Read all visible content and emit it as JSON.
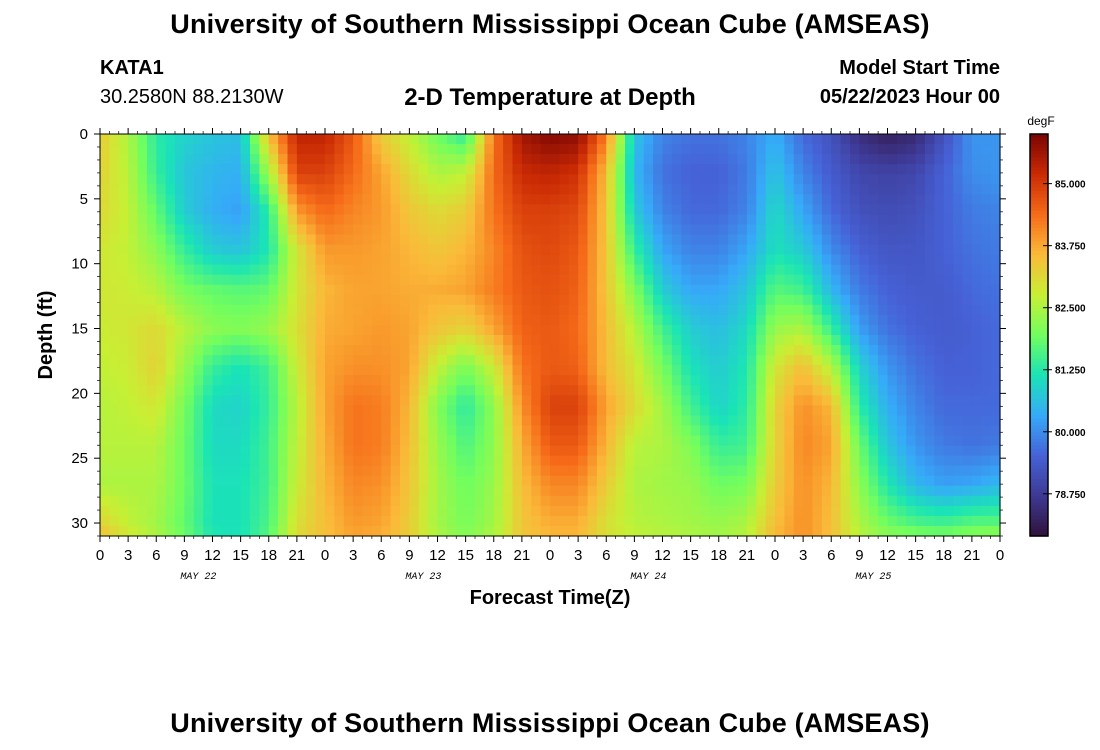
{
  "page": {
    "title": "University of Southern Mississippi Ocean Cube (AMSEAS)",
    "footer_title": "University of Southern Mississippi Ocean Cube (AMSEAS)",
    "station": {
      "name": "KATA1",
      "coords": "30.2580N  88.2130W"
    },
    "plot_title": "2-D Temperature at Depth",
    "model_start": {
      "label": "Model Start Time",
      "value": "05/22/2023 Hour 00"
    }
  },
  "chart_data": {
    "type": "heatmap",
    "title": "2-D Temperature at Depth",
    "xlabel": "Forecast Time(Z)",
    "ylabel": "Depth (ft)",
    "x_tick_labels": [
      "0",
      "3",
      "6",
      "9",
      "12",
      "15",
      "18",
      "21",
      "0",
      "3",
      "6",
      "9",
      "12",
      "15",
      "18",
      "21",
      "0",
      "3",
      "6",
      "9",
      "12",
      "15",
      "18",
      "21",
      "0",
      "3",
      "6",
      "9",
      "12",
      "15",
      "18",
      "21",
      "0"
    ],
    "x_range_hours": [
      0,
      96
    ],
    "day_labels": [
      "MAY 22",
      "MAY 23",
      "MAY 24",
      "MAY 25"
    ],
    "y_ticks": [
      0,
      5,
      10,
      15,
      20,
      25,
      30
    ],
    "y_range_ft": [
      0,
      31
    ],
    "colorbar": {
      "unit": "degF",
      "ticks": [
        "85.000",
        "83.750",
        "82.500",
        "81.250",
        "80.000",
        "78.750"
      ],
      "tick_values": [
        85.0,
        83.75,
        82.5,
        81.25,
        80.0,
        78.75
      ],
      "range": [
        77.9,
        86.0
      ],
      "colors": [
        "#30123b",
        "#3e3994",
        "#4662d7",
        "#36aaf9",
        "#1ae4b6",
        "#72fe5e",
        "#c8ef34",
        "#faba39",
        "#f66b19",
        "#ca2a04",
        "#7a0403"
      ]
    },
    "depths_ft": [
      0,
      3,
      6,
      9,
      12,
      15,
      18,
      21,
      24,
      27,
      30,
      31
    ],
    "hours": [
      0,
      3,
      6,
      9,
      12,
      15,
      18,
      21,
      24,
      27,
      30,
      33,
      36,
      39,
      42,
      45,
      48,
      51,
      54,
      57,
      60,
      63,
      66,
      69,
      72,
      75,
      78,
      81,
      84,
      87,
      90,
      93,
      96
    ],
    "temperature_degF": [
      [
        83.3,
        82.5,
        81.3,
        80.9,
        80.7,
        80.6,
        83.5,
        85.3,
        85.3,
        84.6,
        83.3,
        82.7,
        81.9,
        81.3,
        84.3,
        85.6,
        85.9,
        85.8,
        84.2,
        80.7,
        79.9,
        79.7,
        79.7,
        79.9,
        80.4,
        79.6,
        79.2,
        78.5,
        78.2,
        78.4,
        79.2,
        80.1,
        80.1
      ],
      [
        83.2,
        82.6,
        81.4,
        80.7,
        80.5,
        80.4,
        82.4,
        84.9,
        84.9,
        84.4,
        83.8,
        83.1,
        82.5,
        82.7,
        84.4,
        85.2,
        85.3,
        85.1,
        83.5,
        80.5,
        79.7,
        79.5,
        79.5,
        79.8,
        80.7,
        79.9,
        79.4,
        79.0,
        78.9,
        79.0,
        79.5,
        80.0,
        80.1
      ],
      [
        83.1,
        82.7,
        81.8,
        80.8,
        80.4,
        80.2,
        81.3,
        83.9,
        84.4,
        84.1,
        83.9,
        83.4,
        83.1,
        83.3,
        84.3,
        84.9,
        84.9,
        84.8,
        83.4,
        80.8,
        79.9,
        79.6,
        79.6,
        79.9,
        81.0,
        80.3,
        79.6,
        79.2,
        79.1,
        79.2,
        79.5,
        79.8,
        79.9
      ],
      [
        82.9,
        82.7,
        82.2,
        81.4,
        80.8,
        80.7,
        81.2,
        82.9,
        83.9,
        83.9,
        83.8,
        83.6,
        83.4,
        83.6,
        84.1,
        84.7,
        84.8,
        84.6,
        83.4,
        81.4,
        80.3,
        79.9,
        79.9,
        80.3,
        81.1,
        80.8,
        80.0,
        79.5,
        79.3,
        79.3,
        79.5,
        79.7,
        79.8
      ],
      [
        82.9,
        82.8,
        82.6,
        82.0,
        81.8,
        81.7,
        81.8,
        82.9,
        83.6,
        83.8,
        83.8,
        83.7,
        83.7,
        83.8,
        84.2,
        84.6,
        84.7,
        84.5,
        83.4,
        82.1,
        80.8,
        80.3,
        80.3,
        80.7,
        81.7,
        81.5,
        80.5,
        79.8,
        79.5,
        79.4,
        79.4,
        79.6,
        79.7
      ],
      [
        82.8,
        82.9,
        83.1,
        82.6,
        82.2,
        82.1,
        82.3,
        83.0,
        83.7,
        83.8,
        83.9,
        83.8,
        83.4,
        83.2,
        83.8,
        84.5,
        84.6,
        84.4,
        83.5,
        82.6,
        81.5,
        80.8,
        80.6,
        81.0,
        82.3,
        82.5,
        81.4,
        80.2,
        79.7,
        79.5,
        79.4,
        79.5,
        79.6
      ],
      [
        82.7,
        82.8,
        83.2,
        82.3,
        81.4,
        81.1,
        81.5,
        82.8,
        83.8,
        84.0,
        84.0,
        83.8,
        82.7,
        82.0,
        82.8,
        84.3,
        84.6,
        84.5,
        83.5,
        82.9,
        82.0,
        81.1,
        80.8,
        81.2,
        82.9,
        83.5,
        82.6,
        80.9,
        80.1,
        79.7,
        79.5,
        79.5,
        79.6
      ],
      [
        82.6,
        82.7,
        82.9,
        82.0,
        81.0,
        80.9,
        81.4,
        82.6,
        83.8,
        84.3,
        84.2,
        83.6,
        82.1,
        81.3,
        82.2,
        84.0,
        84.9,
        84.9,
        83.8,
        83.1,
        82.4,
        81.5,
        80.9,
        81.3,
        83.2,
        84.0,
        83.6,
        81.3,
        80.4,
        79.9,
        79.6,
        79.6,
        79.6
      ],
      [
        82.6,
        82.6,
        82.6,
        81.9,
        81.0,
        81.0,
        81.5,
        82.7,
        83.7,
        84.3,
        84.2,
        83.5,
        82.3,
        81.6,
        82.2,
        83.7,
        84.6,
        84.6,
        83.6,
        82.6,
        82.5,
        82.1,
        81.4,
        81.5,
        83.2,
        84.1,
        83.8,
        81.9,
        80.7,
        80.1,
        79.8,
        79.7,
        79.8
      ],
      [
        82.5,
        82.5,
        82.5,
        81.9,
        81.1,
        81.1,
        81.5,
        82.8,
        83.6,
        84.1,
        84.0,
        83.4,
        82.4,
        81.9,
        82.3,
        83.5,
        84.1,
        84.1,
        83.3,
        82.5,
        82.4,
        82.3,
        81.9,
        82.0,
        83.3,
        84.0,
        83.6,
        82.2,
        81.2,
        80.5,
        80.2,
        80.3,
        80.5
      ],
      [
        83.2,
        82.7,
        82.4,
        81.8,
        81.1,
        81.1,
        81.6,
        83.0,
        83.5,
        83.9,
        83.8,
        83.3,
        82.4,
        82.0,
        82.4,
        83.4,
        83.7,
        83.7,
        83.0,
        82.6,
        82.5,
        82.4,
        82.3,
        82.5,
        83.5,
        84.0,
        83.5,
        82.5,
        81.9,
        81.6,
        81.5,
        81.7,
        81.7
      ],
      [
        83.5,
        82.9,
        82.5,
        81.9,
        81.2,
        81.1,
        81.7,
        83.1,
        83.5,
        83.8,
        83.7,
        83.3,
        82.5,
        82.1,
        82.5,
        83.4,
        83.6,
        83.6,
        83.0,
        82.7,
        82.6,
        82.5,
        82.4,
        82.6,
        83.6,
        84.0,
        83.5,
        82.6,
        82.2,
        82.1,
        82.0,
        82.2,
        82.3
      ]
    ]
  }
}
